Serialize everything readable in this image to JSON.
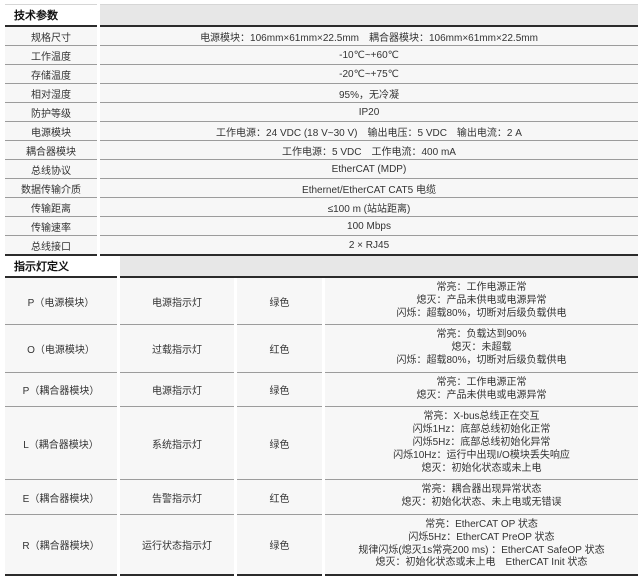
{
  "colors": {
    "section_header_bg": "#e7e7e7",
    "cell_bg": "#f7f7f7",
    "border_dark": "#2b2b2b",
    "border_light": "#9c9c9c",
    "text": "#333333"
  },
  "tech": {
    "header": "技术参数",
    "rows": [
      {
        "label": "规格尺寸",
        "value": "电源模块：106mm×61mm×22.5mm　耦合器模块：106mm×61mm×22.5mm"
      },
      {
        "label": "工作温度",
        "value": "-10℃~+60℃"
      },
      {
        "label": "存储温度",
        "value": "-20℃~+75℃"
      },
      {
        "label": "相对湿度",
        "value": "95%，无冷凝"
      },
      {
        "label": "防护等级",
        "value": "IP20"
      },
      {
        "label": "电源模块",
        "value": "工作电源：24 VDC (18 V~30 V)　输出电压：5 VDC　输出电流：2 A"
      },
      {
        "label": "耦合器模块",
        "value": "工作电源：5 VDC　工作电流：400 mA"
      },
      {
        "label": "总线协议",
        "value": "EtherCAT (MDP)"
      },
      {
        "label": "数据传输介质",
        "value": "Ethernet/EtherCAT CAT5 电缆"
      },
      {
        "label": "传输距离",
        "value": "≤100 m (站站距离)"
      },
      {
        "label": "传输速率",
        "value": "100 Mbps"
      },
      {
        "label": "总线接口",
        "value": "2 × RJ45"
      }
    ]
  },
  "indicators": {
    "header": "指示灯定义",
    "rows": [
      {
        "led": "P（电源模块）",
        "name": "电源指示灯",
        "color": "绿色",
        "desc": "常亮：工作电源正常\n熄灭：产品未供电或电源异常\n闪烁：超载80%，切断对后级负载供电"
      },
      {
        "led": "O（电源模块）",
        "name": "过载指示灯",
        "color": "红色",
        "desc": "常亮：负载达到90%\n熄灭：未超载\n闪烁：超载80%，切断对后级负载供电"
      },
      {
        "led": "P（耦合器模块）",
        "name": "电源指示灯",
        "color": "绿色",
        "desc": "常亮：工作电源正常\n熄灭：产品未供电或电源异常"
      },
      {
        "led": "L（耦合器模块）",
        "name": "系统指示灯",
        "color": "绿色",
        "desc": "常亮：X-bus总线正在交互\n闪烁1Hz：底部总线初始化正常\n闪烁5Hz：底部总线初始化异常\n闪烁10Hz：运行中出现I/O模块丢失响应\n熄灭：初始化状态或未上电"
      },
      {
        "led": "E（耦合器模块）",
        "name": "告警指示灯",
        "color": "红色",
        "desc": "常亮：耦合器出现异常状态\n熄灭：初始化状态、未上电或无错误"
      },
      {
        "led": "R（耦合器模块）",
        "name": "运行状态指示灯",
        "color": "绿色",
        "desc": "常亮：EtherCAT OP 状态\n闪烁5Hz：EtherCAT PreOP 状态\n规律闪烁(熄灭1s常亮200 ms) ：EtherCAT SafeOP 状态\n熄灭：初始化状态或未上电　EtherCAT Init 状态"
      }
    ]
  }
}
